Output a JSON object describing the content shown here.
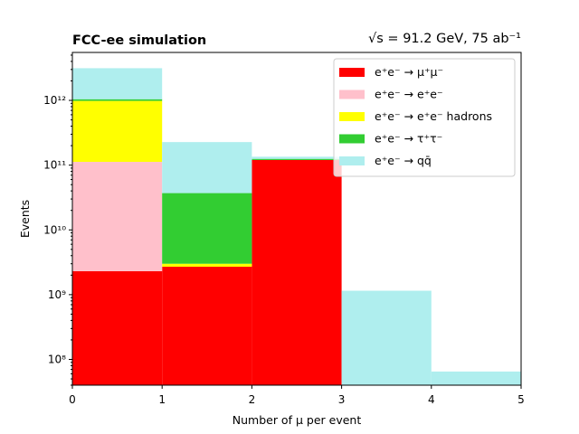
{
  "chart_data": {
    "type": "bar",
    "stacked": true,
    "histogram": true,
    "title_left": "FCC-ee simulation",
    "title_right": "√s = 91.2 GeV, 75 ab⁻¹",
    "xlabel": "Number of μ per event",
    "ylabel": "Events",
    "xlim": [
      0,
      5
    ],
    "ylim": [
      40000000.0,
      5500000000000.0
    ],
    "yscale": "log",
    "x_ticks": [
      "0",
      "1",
      "2",
      "3",
      "4",
      "5"
    ],
    "y_ticks": [
      "10⁸",
      "10⁹",
      "10¹⁰",
      "10¹¹",
      "10¹²"
    ],
    "bin_edges": [
      0,
      1,
      2,
      3,
      4,
      5
    ],
    "legend_position": "top-right",
    "series": [
      {
        "name": "e⁺e⁻ → μ⁺μ⁻",
        "color": "#ff0000",
        "values": [
          2300000000.0,
          2700000000.0,
          120000000000.0,
          0,
          0
        ]
      },
      {
        "name": "e⁺e⁻ → e⁺e⁻",
        "color": "#ffc0cb",
        "values": [
          110000000000.0,
          0,
          0,
          0,
          0
        ]
      },
      {
        "name": "e⁺e⁻ → e⁺e⁻ hadrons",
        "color": "#ffff00",
        "values": [
          870000000000.0,
          300000000.0,
          0,
          0,
          0
        ]
      },
      {
        "name": "e⁺e⁻ → τ⁺τ⁻",
        "color": "#32cd32",
        "values": [
          60000000000.0,
          34000000000.0,
          5000000000.0,
          0,
          0
        ]
      },
      {
        "name": "e⁺e⁻ → qq̄",
        "color": "#afeeee",
        "values": [
          2100000000000.0,
          190000000000.0,
          10000000000.0,
          1150000000.0,
          65000000.0
        ]
      }
    ]
  }
}
